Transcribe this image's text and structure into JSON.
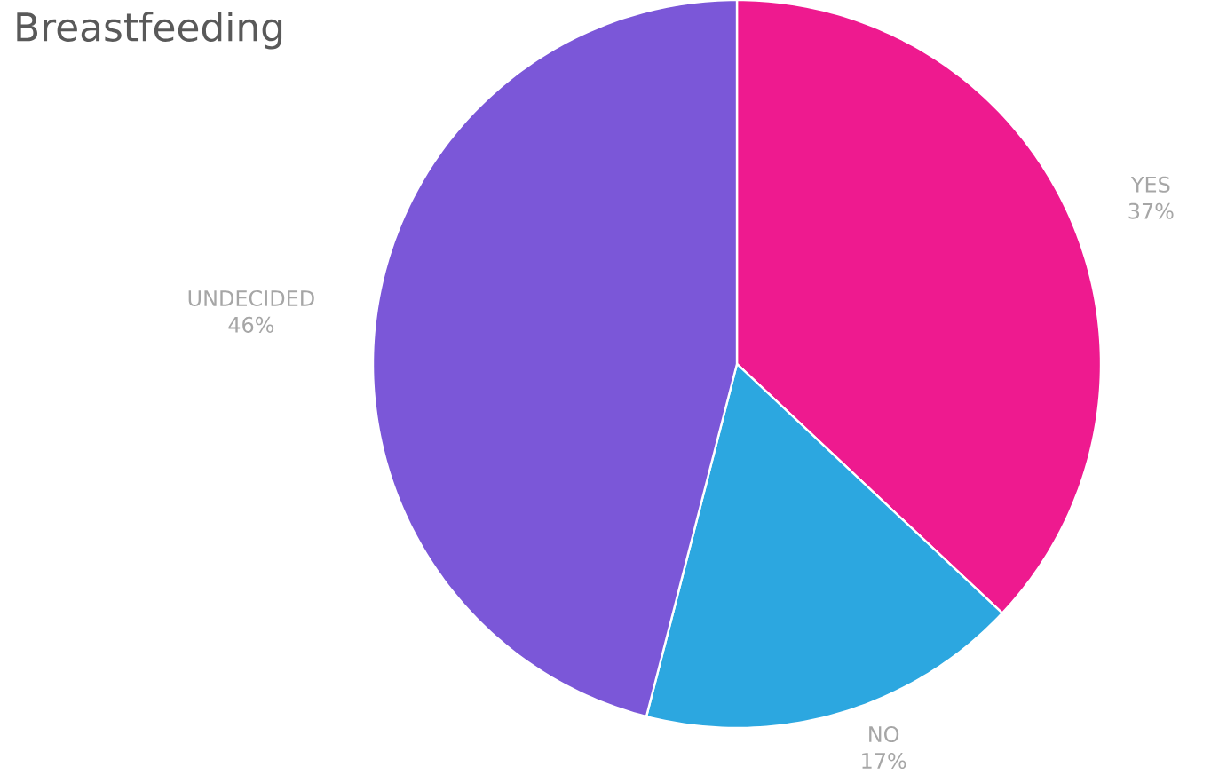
{
  "chart_data": {
    "type": "pie",
    "title": "Breastfeeding",
    "categories": [
      "YES",
      "NO",
      "UNDECIDED"
    ],
    "values": [
      37,
      17,
      46
    ],
    "value_labels": [
      "37%",
      "17%",
      "46%"
    ],
    "colors": [
      "#ee1a8f",
      "#2ca7e0",
      "#7b57d8"
    ]
  }
}
